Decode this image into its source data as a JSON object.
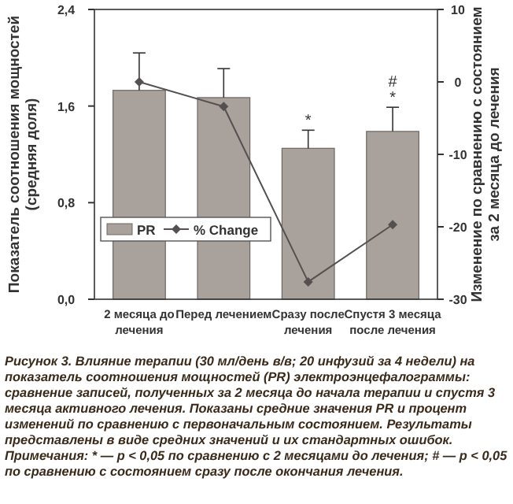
{
  "chart_data": {
    "type": "bar",
    "categories": [
      "2 месяца до лечения",
      "Перед лечением",
      "Сразу после лечения",
      "Спустя 3 месяца после лечения"
    ],
    "ylabel": "Показатель соотношения мощностей (средняя доля)",
    "y2label": "Изменение по сравнению с состоянием за 2 месяца до лечения",
    "series": [
      {
        "name": "PR",
        "color": "#a9a19c",
        "values": [
          1.73,
          1.67,
          1.25,
          1.39
        ],
        "errors": [
          0.31,
          0.24,
          0.15,
          0.2
        ]
      },
      {
        "name": "% Change",
        "type": "line",
        "axis": "y2",
        "color": "#555050",
        "marker": "diamond",
        "values": [
          0,
          -3.4,
          -27.6,
          -19.7
        ]
      }
    ],
    "ylim": [
      0,
      2.4
    ],
    "yticks": [
      {
        "value": 0,
        "label": "0,0"
      },
      {
        "value": 0.8,
        "label": "0,8"
      },
      {
        "value": 1.6,
        "label": "1,6"
      },
      {
        "value": 2.4,
        "label": "2,4"
      }
    ],
    "y2lim": [
      -30,
      10
    ],
    "y2ticks": [
      -30,
      -20,
      -10,
      0,
      10
    ],
    "legend": "bottom left",
    "grid": false,
    "annotations": [
      {
        "text": "*",
        "x": "Сразу после лечения",
        "y": 1.4
      },
      {
        "text": "*",
        "x": "Спустя 3 месяца после лечения",
        "y": 1.59
      },
      {
        "text": "#",
        "x": "Спустя 3 месяца после лечения",
        "y": 1.59
      },
      "Рисунок 3. Влияние терапии (30 мл/день в/в; 20 инфузий за 4 недели) на показатель соотношения мощностей (PR) электроэнцефалограммы: сравнение записей, полученных за 2 месяца до начала терапии и спустя 3 месяца активного лечения. Показаны средние значения PR и процент изменений по сравнению с первоначальным состоянием. Результаты представлены в виде средних значений и их стандартных ошибок.",
      "Примечания: * — p < 0,05 по сравнению с 2 месяцами до лечения; # — p < 0,05 по сравнению с состоянием сразу после окончания лечения."
    ]
  }
}
